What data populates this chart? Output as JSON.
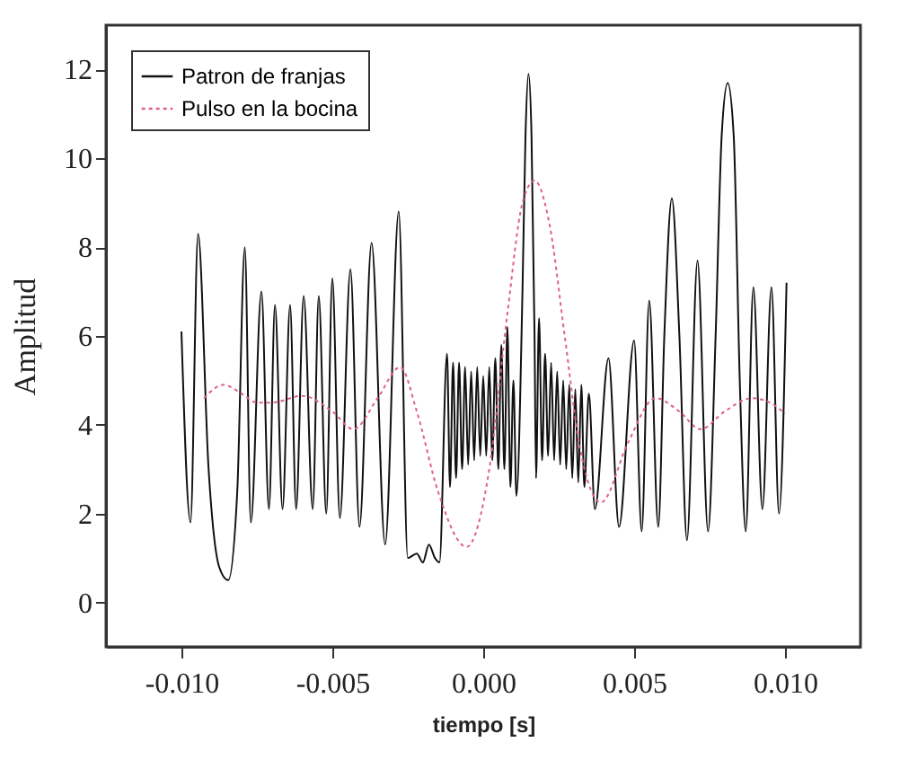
{
  "chart_data": {
    "type": "line",
    "xlabel": "tiempo [s]",
    "ylabel": "Amplitud",
    "xlim": [
      -0.0125,
      0.0125
    ],
    "ylim": [
      -1,
      13
    ],
    "xticks": [
      {
        "value": -0.01,
        "label": "-0.010"
      },
      {
        "value": -0.005,
        "label": "-0.005"
      },
      {
        "value": 0,
        "label": "0.000"
      },
      {
        "value": 0.005,
        "label": "0.005"
      },
      {
        "value": 0.01,
        "label": "0.010"
      }
    ],
    "yticks": [
      0,
      2,
      4,
      6,
      8,
      10,
      12
    ],
    "legend": "top left",
    "series": [
      {
        "name": "Patron de franjas",
        "color": "#111111",
        "line_style": "solid",
        "x": [
          -0.01,
          -0.0097,
          -0.00945,
          -0.0091,
          -0.00875,
          -0.00845,
          -0.00815,
          -0.0079,
          -0.0077,
          -0.00735,
          -0.0071,
          -0.0069,
          -0.00665,
          -0.0064,
          -0.0062,
          -0.00595,
          -0.00565,
          -0.00545,
          -0.0052,
          -0.005,
          -0.00475,
          -0.0044,
          -0.0041,
          -0.0037,
          -0.00325,
          -0.0028,
          -0.0025,
          -0.0022,
          -0.002,
          -0.0018,
          -0.0016,
          -0.00145,
          -0.0012,
          -0.0011,
          -0.001,
          -0.0009,
          -0.0008,
          -0.0007,
          -0.0006,
          -0.0005,
          -0.0004,
          -0.0003,
          -0.0002,
          -0.0001,
          0,
          0.0001,
          0.0002,
          0.0003,
          0.0004,
          0.0005,
          0.0006,
          0.0007,
          0.0008,
          0.0009,
          0.001,
          0.0011,
          0.0013,
          0.0014,
          0.0015,
          0.0016,
          0.0017,
          0.00175,
          0.00185,
          0.00195,
          0.00205,
          0.00215,
          0.00225,
          0.00235,
          0.00245,
          0.00255,
          0.00265,
          0.00275,
          0.00285,
          0.00295,
          0.00305,
          0.00315,
          0.00325,
          0.00335,
          0.0035,
          0.0037,
          0.00415,
          0.0045,
          0.005,
          0.00525,
          0.0055,
          0.0058,
          0.006,
          0.00625,
          0.0065,
          0.00675,
          0.0071,
          0.00745,
          0.0077,
          0.0079,
          0.0081,
          0.0083,
          0.0085,
          0.0087,
          0.00895,
          0.00925,
          0.00955,
          0.0098,
          0.01005
        ],
        "values": [
          6.1,
          1.8,
          8.3,
          3.0,
          0.8,
          0.5,
          2.5,
          8.0,
          1.8,
          7.0,
          2.1,
          6.7,
          2.1,
          6.7,
          2.1,
          6.9,
          2.1,
          6.9,
          2.0,
          7.3,
          1.9,
          7.5,
          1.7,
          8.1,
          1.3,
          8.8,
          1.0,
          1.1,
          0.9,
          1.3,
          1.0,
          0.9,
          5.6,
          2.6,
          5.4,
          2.8,
          5.4,
          3.0,
          5.3,
          3.1,
          5.2,
          3.2,
          5.3,
          3.3,
          5.1,
          3.3,
          5.3,
          3.2,
          5.5,
          3.0,
          5.8,
          3.0,
          6.2,
          2.6,
          5.0,
          2.4,
          7.0,
          10.5,
          11.9,
          10.5,
          6.0,
          2.8,
          6.4,
          3.2,
          5.6,
          3.3,
          5.4,
          3.2,
          5.2,
          3.1,
          5.0,
          3.0,
          4.9,
          2.8,
          4.8,
          2.7,
          4.9,
          2.6,
          4.7,
          2.1,
          5.5,
          1.7,
          5.9,
          1.6,
          6.8,
          1.7,
          6.0,
          9.1,
          6.0,
          1.4,
          7.7,
          1.6,
          6.0,
          10.5,
          11.7,
          10.5,
          5.0,
          1.6,
          7.1,
          2.1,
          7.1,
          2.0,
          7.2
        ]
      },
      {
        "name": "Pulso en la bocina",
        "color": "#e0608a",
        "line_style": "dotted",
        "x": [
          -0.00925,
          -0.0086,
          -0.008,
          -0.0075,
          -0.007,
          -0.006,
          -0.005,
          -0.0043,
          -0.0035,
          -0.00275,
          -0.0022,
          -0.0015,
          -0.00055,
          0.0002,
          0.0008,
          0.0013,
          0.0017,
          0.0022,
          0.0027,
          0.0032,
          0.0039,
          0.0048,
          0.0057,
          0.0065,
          0.0072,
          0.008,
          0.0089,
          0.0095,
          0.01
        ],
        "values": [
          4.6,
          4.9,
          4.7,
          4.5,
          4.5,
          4.65,
          4.3,
          3.9,
          4.6,
          5.3,
          4.3,
          2.5,
          1.25,
          3.0,
          6.5,
          9.0,
          9.5,
          8.5,
          6.0,
          3.5,
          2.25,
          3.6,
          4.6,
          4.3,
          3.9,
          4.3,
          4.6,
          4.5,
          4.25
        ]
      }
    ]
  }
}
